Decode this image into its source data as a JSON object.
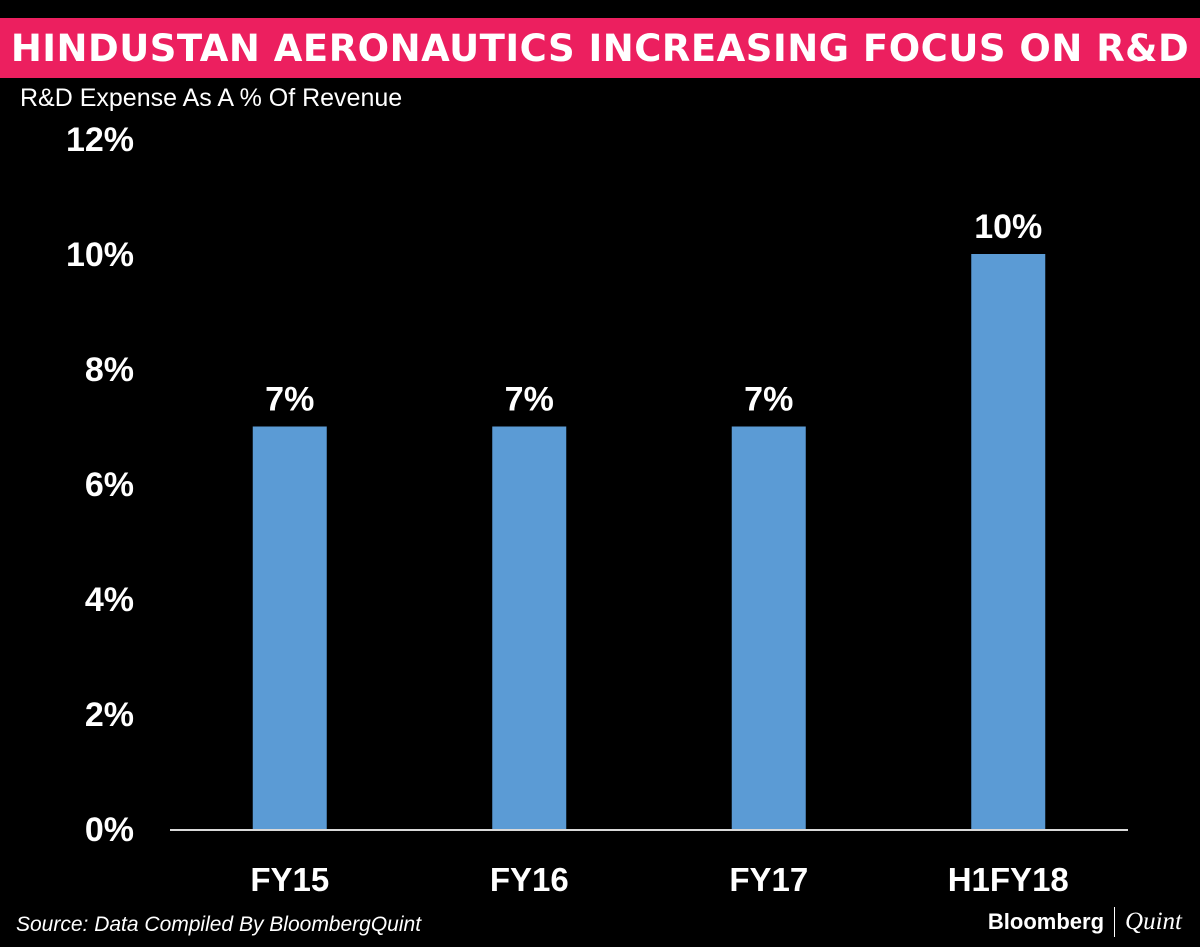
{
  "header": {
    "title": "HINDUSTAN AERONAUTICS INCREASING FOCUS ON R&D",
    "subtitle": "R&D Expense As A % Of Revenue"
  },
  "footer": {
    "source": "Source: Data Compiled By BloombergQuint",
    "logo_brand": "Bloomberg",
    "logo_sub": "Quint"
  },
  "colors": {
    "title_bar": "#ec1f5f",
    "bar": "#5b9bd5",
    "background": "#000000",
    "axis": "#d9d9d9"
  },
  "chart_data": {
    "type": "bar",
    "title": "HINDUSTAN AERONAUTICS INCREASING FOCUS ON R&D",
    "subtitle": "R&D Expense As A % Of Revenue",
    "xlabel": "",
    "ylabel": "",
    "categories": [
      "FY15",
      "FY16",
      "FY17",
      "H1FY18"
    ],
    "values": [
      7,
      7,
      7,
      10
    ],
    "data_labels": [
      "7%",
      "7%",
      "7%",
      "10%"
    ],
    "ylim": [
      0,
      12
    ],
    "yticks": [
      0,
      2,
      4,
      6,
      8,
      10,
      12
    ],
    "ytick_labels": [
      "0%",
      "2%",
      "4%",
      "6%",
      "8%",
      "10%",
      "12%"
    ],
    "grid": false,
    "legend": "none"
  }
}
